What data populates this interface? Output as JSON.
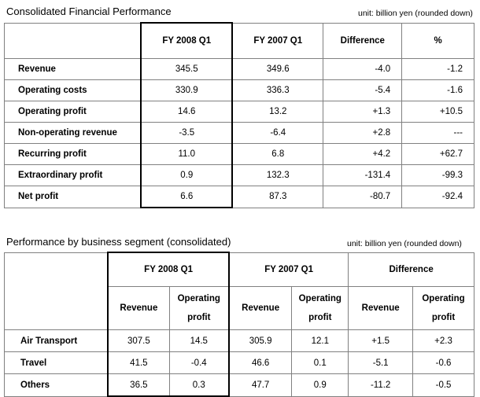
{
  "section1": {
    "title": "Consolidated Financial Performance",
    "unit": "unit: billion yen (rounded down)",
    "headers": [
      "FY 2008 Q1",
      "FY 2007 Q1",
      "Difference",
      "%"
    ],
    "rows": [
      {
        "label": "Revenue",
        "fy2008": "345.5",
        "fy2007": "349.6",
        "diff": "-4.0",
        "pct": "-1.2"
      },
      {
        "label": "Operating costs",
        "fy2008": "330.9",
        "fy2007": "336.3",
        "diff": "-5.4",
        "pct": "-1.6"
      },
      {
        "label": "Operating profit",
        "fy2008": "14.6",
        "fy2007": "13.2",
        "diff": "+1.3",
        "pct": "+10.5"
      },
      {
        "label": "Non-operating revenue",
        "fy2008": "-3.5",
        "fy2007": "-6.4",
        "diff": "+2.8",
        "pct": "---"
      },
      {
        "label": "Recurring profit",
        "fy2008": "11.0",
        "fy2007": "6.8",
        "diff": "+4.2",
        "pct": "+62.7"
      },
      {
        "label": "Extraordinary profit",
        "fy2008": "0.9",
        "fy2007": "132.3",
        "diff": "-131.4",
        "pct": "-99.3"
      },
      {
        "label": "Net profit",
        "fy2008": "6.6",
        "fy2007": "87.3",
        "diff": "-80.7",
        "pct": "-92.4"
      }
    ]
  },
  "section2": {
    "title": "Performance by business segment (consolidated)",
    "unit": "unit: billion yen (rounded down)",
    "group_headers": [
      "FY 2008 Q1",
      "FY 2007 Q1",
      "Difference"
    ],
    "revenue_label": "Revenue",
    "op_label_line1": "Operating",
    "op_label_line2": "profit",
    "rows": [
      {
        "label": "Air Transport",
        "rev08": "307.5",
        "op08": "14.5",
        "rev07": "305.9",
        "op07": "12.1",
        "revd": "+1.5",
        "opd": "+2.3"
      },
      {
        "label": "Travel",
        "rev08": "41.5",
        "op08": "-0.4",
        "rev07": "46.6",
        "op07": "0.1",
        "revd": "-5.1",
        "opd": "-0.6"
      },
      {
        "label": "Others",
        "rev08": "36.5",
        "op08": "0.3",
        "rev07": "47.7",
        "op07": "0.9",
        "revd": "-11.2",
        "opd": "-0.5"
      }
    ]
  }
}
